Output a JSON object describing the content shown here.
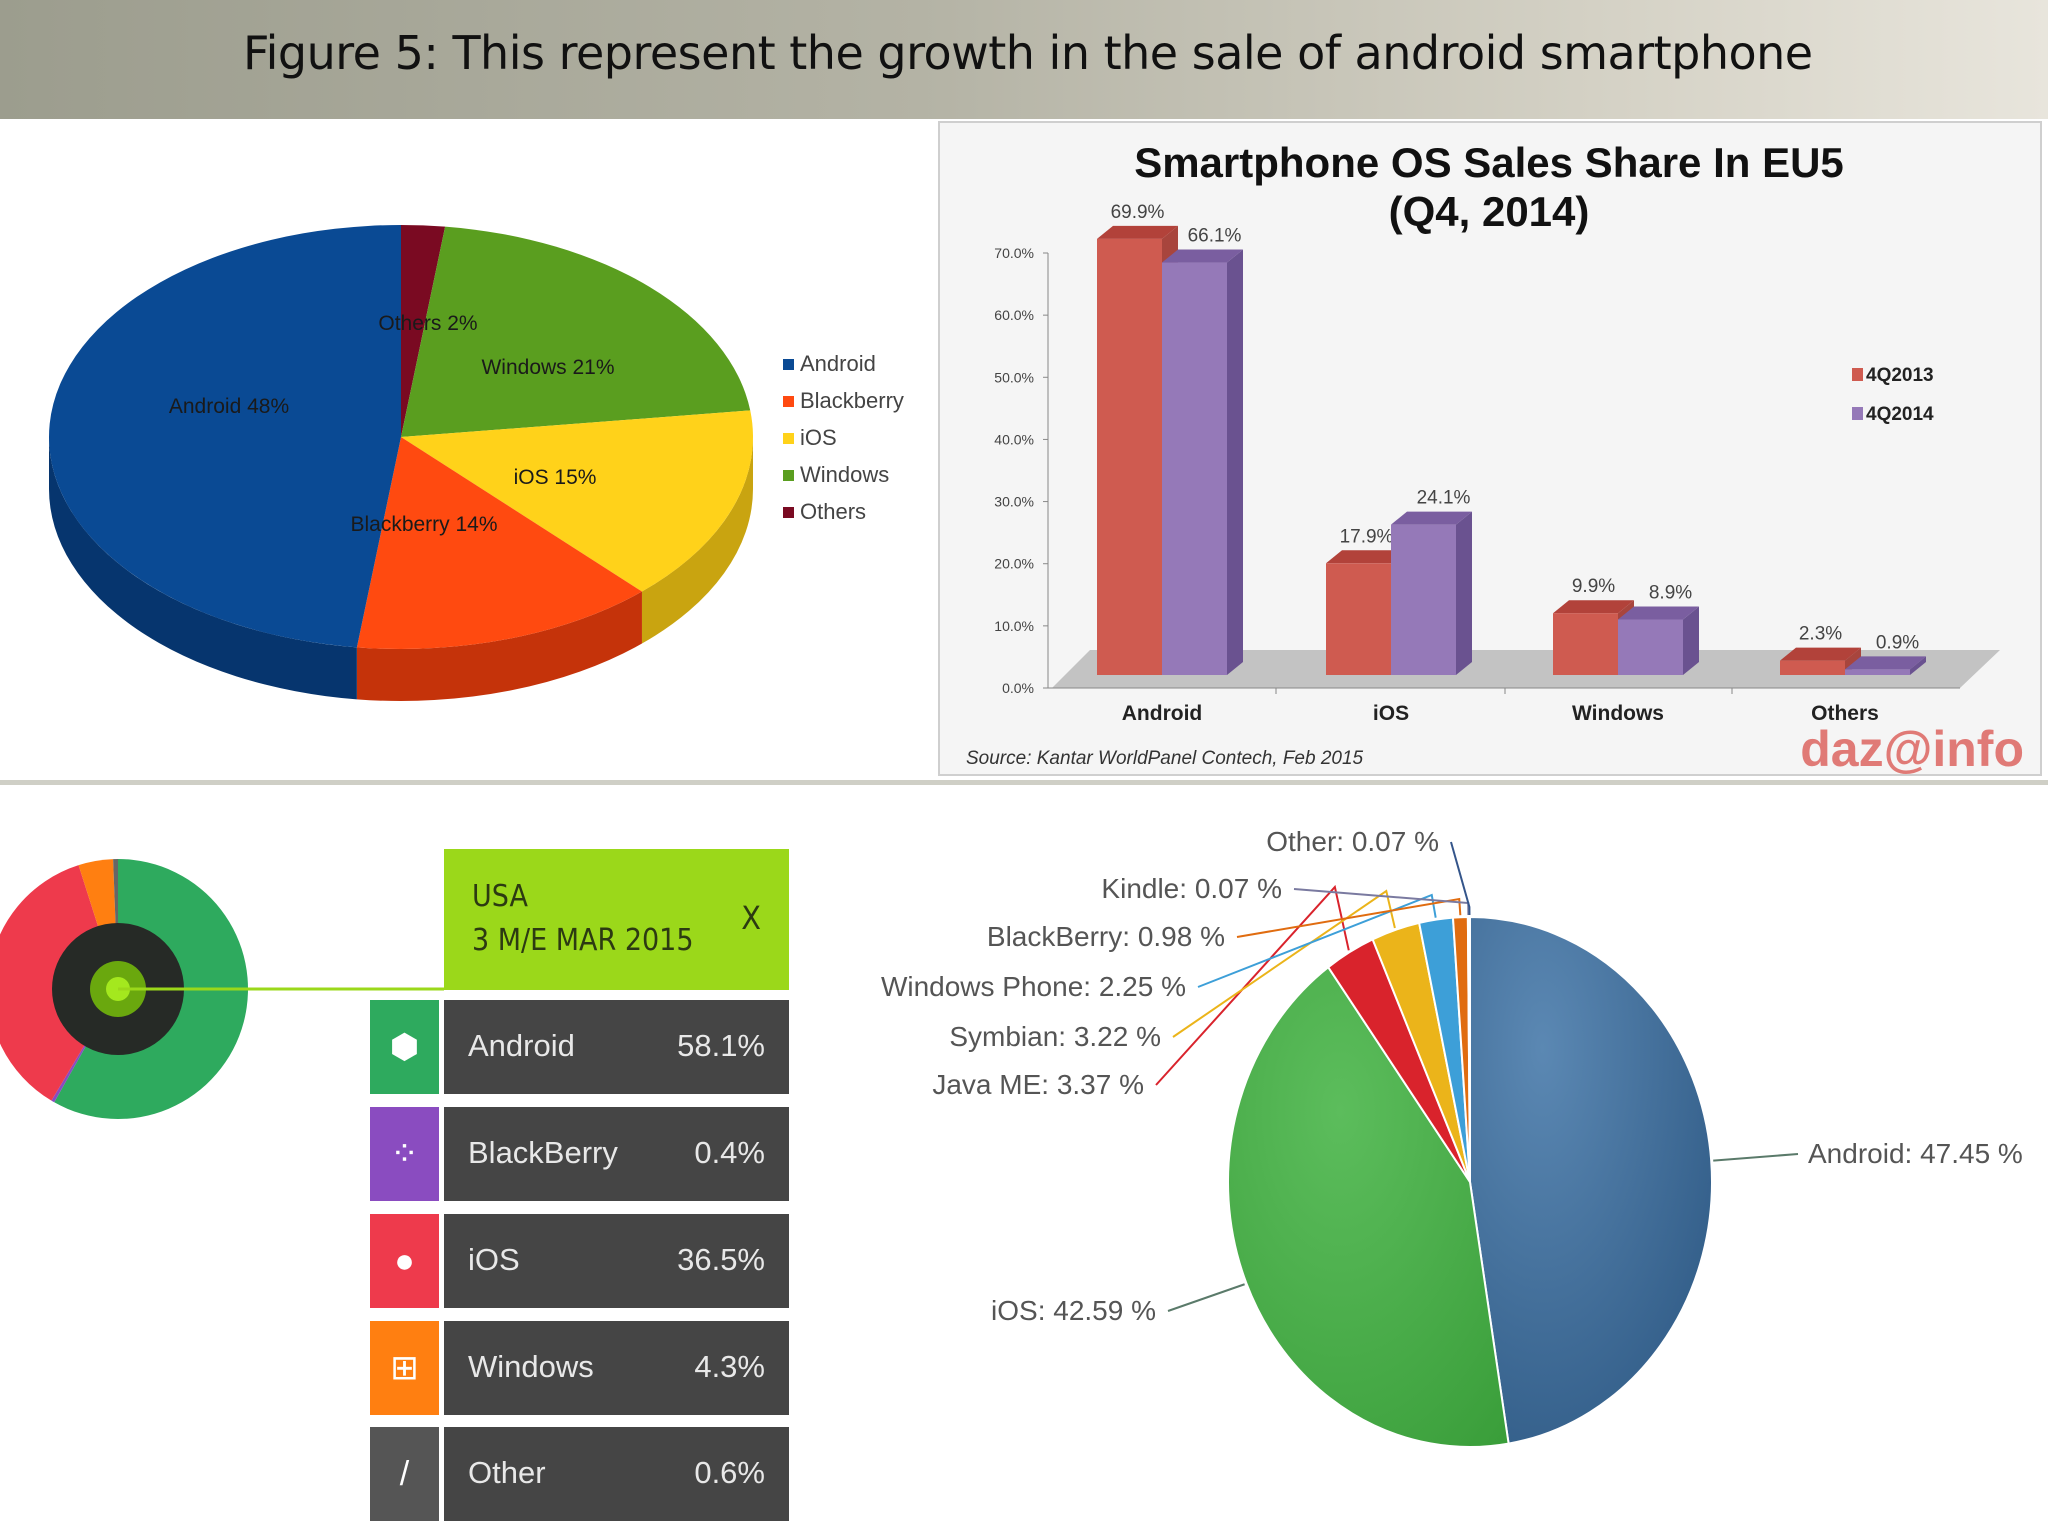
{
  "title": "Figure 5: This represent the growth in the sale of android smartphone",
  "chart_data": [
    {
      "type": "pie",
      "style": "3d",
      "labels": [
        "Others 2%",
        "Windows 21%",
        "iOS 15%",
        "Blackberry 14%",
        "Android 48%"
      ],
      "categories": [
        "Others",
        "Windows",
        "iOS",
        "Blackberry",
        "Android"
      ],
      "values": [
        2,
        21,
        15,
        14,
        48
      ],
      "colors": [
        "#7a0a22",
        "#5a9e1f",
        "#ffd21a",
        "#ff4a10",
        "#0a4a94"
      ],
      "side_colors": [
        "#55061a",
        "#3f7314",
        "#c9a410",
        "#c5330a",
        "#06356e"
      ],
      "legend": [
        "Android",
        "Blackberry",
        "iOS",
        "Windows",
        "Others"
      ],
      "legend_colors": [
        "#0a4a94",
        "#ff4a10",
        "#ffd21a",
        "#5a9e1f",
        "#7a0a22"
      ],
      "legend_position": "right"
    },
    {
      "type": "bar",
      "style": "3d",
      "title": "Smartphone OS Sales Share In EU5",
      "subtitle": "(Q4, 2014)",
      "categories": [
        "Android",
        "iOS",
        "Windows",
        "Others"
      ],
      "series": [
        {
          "name": "4Q2013",
          "values": [
            69.9,
            17.9,
            9.9,
            2.3
          ],
          "labels": [
            "69.9%",
            "17.9%",
            "9.9%",
            "2.3%"
          ],
          "color": "#cf5b50",
          "top": "#b2423a",
          "side": "#a8453d"
        },
        {
          "name": "4Q2014",
          "values": [
            66.1,
            24.1,
            8.9,
            0.9
          ],
          "labels": [
            "66.1%",
            "24.1%",
            "8.9%",
            "0.9%"
          ],
          "color": "#9579b8",
          "top": "#7a5ea0",
          "side": "#6a5290"
        }
      ],
      "yticks": [
        "0.0%",
        "10.0%",
        "20.0%",
        "30.0%",
        "40.0%",
        "50.0%",
        "60.0%",
        "70.0%"
      ],
      "ylim": [
        0,
        70
      ],
      "legend_position": "right",
      "source": "Source: Kantar WorldPanel Contech, Feb 2015",
      "logo": "daz@info"
    },
    {
      "type": "pie",
      "style": "donut",
      "header": {
        "region": "USA",
        "period": "3 M/E MAR 2015",
        "close": "X"
      },
      "rows": [
        {
          "name": "Android",
          "value": 58.1,
          "label": "58.1%",
          "color": "#2eaa5e",
          "icon": "android-icon",
          "glyph": "⬢"
        },
        {
          "name": "BlackBerry",
          "value": 0.4,
          "label": "0.4%",
          "color": "#8a4cc0",
          "icon": "blackberry-icon",
          "glyph": "⁘"
        },
        {
          "name": "iOS",
          "value": 36.5,
          "label": "36.5%",
          "color": "#ee3a4c",
          "icon": "apple-icon",
          "glyph": "●"
        },
        {
          "name": "Windows",
          "value": 4.3,
          "label": "4.3%",
          "color": "#ff7f11",
          "icon": "windows-icon",
          "glyph": "⊞"
        },
        {
          "name": "Other",
          "value": 0.6,
          "label": "0.6%",
          "color": "#555555",
          "icon": "slash-icon",
          "glyph": "/"
        }
      ]
    },
    {
      "type": "pie",
      "categories": [
        "Android",
        "iOS",
        "Java ME",
        "Symbian",
        "Windows Phone",
        "BlackBerry",
        "Kindle",
        "Other"
      ],
      "values": [
        47.45,
        42.59,
        3.37,
        3.22,
        2.25,
        0.98,
        0.07,
        0.07
      ],
      "labels": [
        "Android: 47.45 %",
        "iOS: 42.59 %",
        "Java ME: 3.37 %",
        "Symbian: 3.22 %",
        "Windows Phone: 2.25 %",
        "BlackBerry: 0.98 %",
        "Kindle: 0.07 %",
        "Other: 0.07 %"
      ],
      "colors": [
        "#42709c",
        "#4cae4c",
        "#d9232c",
        "#ebb41a",
        "#3d9fd8",
        "#e06c10",
        "#7a7aa0",
        "#34558a"
      ]
    }
  ]
}
